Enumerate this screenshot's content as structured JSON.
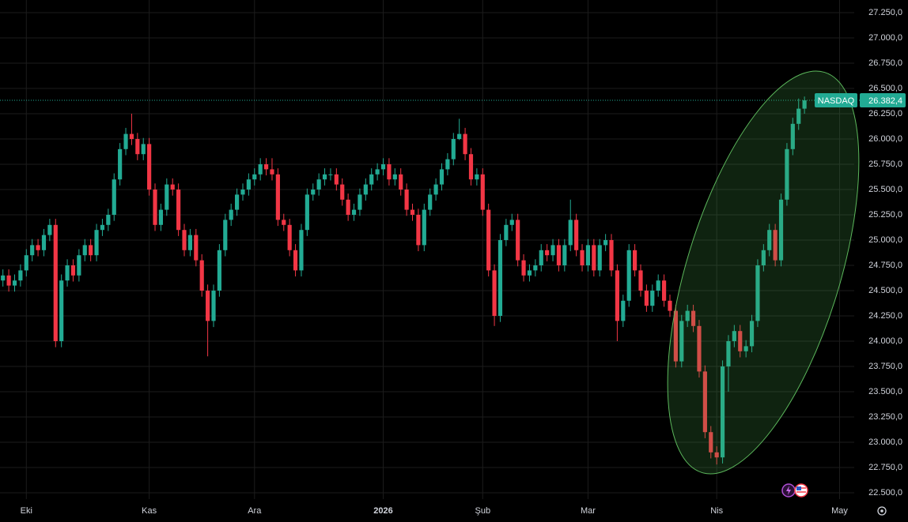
{
  "chart_data": {
    "type": "candlestick",
    "symbol": "NASDAQ",
    "last_price": {
      "value": 26382.4,
      "label": "26.382,4"
    },
    "up_color": "#22ab94",
    "down_color": "#f23645",
    "grid": true,
    "xlim": [
      -0.5,
      145.5
    ],
    "xticks": [
      {
        "value": 4,
        "label": "Eki"
      },
      {
        "value": 25,
        "label": "Kas"
      },
      {
        "value": 43,
        "label": "Ara"
      },
      {
        "value": 65,
        "label": "2026"
      },
      {
        "value": 82,
        "label": "Şub"
      },
      {
        "value": 100,
        "label": "Mar"
      },
      {
        "value": 122,
        "label": "Nis"
      },
      {
        "value": 143,
        "label": "May"
      }
    ],
    "ylim": [
      22437.5,
      27375
    ],
    "yticks": [
      {
        "value": 22500,
        "label": "22.500,0"
      },
      {
        "value": 22750,
        "label": "22.750,0"
      },
      {
        "value": 23000,
        "label": "23.000,0"
      },
      {
        "value": 23250,
        "label": "23.250,0"
      },
      {
        "value": 23500,
        "label": "23.500,0"
      },
      {
        "value": 23750,
        "label": "23.750,0"
      },
      {
        "value": 24000,
        "label": "24.000,0"
      },
      {
        "value": 24250,
        "label": "24.250,0"
      },
      {
        "value": 24500,
        "label": "24.500,0"
      },
      {
        "value": 24750,
        "label": "24.750,0"
      },
      {
        "value": 25000,
        "label": "25.000,0"
      },
      {
        "value": 25250,
        "label": "25.250,0"
      },
      {
        "value": 25500,
        "label": "25.500,0"
      },
      {
        "value": 25750,
        "label": "25.750,0"
      },
      {
        "value": 26000,
        "label": "26.000,0"
      },
      {
        "value": 26250,
        "label": "26.250,0"
      },
      {
        "value": 26500,
        "label": "26.500,0"
      },
      {
        "value": 26750,
        "label": "26.750,0"
      },
      {
        "value": 27000,
        "label": "27.000,0"
      },
      {
        "value": 27250,
        "label": "27.250,0"
      }
    ],
    "open": [
      24600,
      24650,
      24550,
      24600,
      24700,
      24850,
      24950,
      24900,
      25050,
      25150,
      24000,
      24600,
      24750,
      24650,
      24850,
      24950,
      24850,
      25100,
      25150,
      25250,
      25600,
      25900,
      26050,
      26000,
      25850,
      25950,
      25500,
      25150,
      25300,
      25550,
      25500,
      25100,
      24900,
      25050,
      24800,
      24500,
      24200,
      24500,
      24900,
      25200,
      25300,
      25450,
      25500,
      25600,
      25650,
      25750,
      25700,
      25650,
      25200,
      25150,
      24900,
      24700,
      25100,
      25450,
      25500,
      25600,
      25650,
      25650,
      25550,
      25400,
      25250,
      25300,
      25450,
      25550,
      25650,
      25700,
      25750,
      25600,
      25650,
      25500,
      25300,
      25250,
      24950,
      25300,
      25450,
      25550,
      25700,
      25800,
      26000,
      26050,
      25850,
      25600,
      25650,
      25300,
      24700,
      24250,
      25000,
      25150,
      25200,
      24800,
      24650,
      24700,
      24750,
      24900,
      24850,
      24950,
      24750,
      24950,
      25200,
      24900,
      24750,
      24950,
      24700,
      24950,
      25000,
      24700,
      24200,
      24400,
      24900,
      24700,
      24500,
      24350,
      24500,
      24600,
      24400,
      24300,
      23800,
      24200,
      24300,
      24150,
      23700,
      23100,
      22900,
      22850,
      23750,
      24000,
      24100,
      23900,
      23950,
      24200,
      24750,
      24900,
      25100,
      24800,
      25400,
      25900,
      26150,
      26300
    ],
    "high": [
      24710,
      24710,
      24660,
      24760,
      24910,
      25010,
      25010,
      25110,
      25210,
      25210,
      24660,
      24810,
      24810,
      24910,
      25010,
      25010,
      25160,
      25210,
      25310,
      25660,
      25960,
      26110,
      26250,
      26060,
      26010,
      26010,
      25560,
      25360,
      25610,
      25610,
      25560,
      25160,
      25110,
      25110,
      24860,
      24560,
      24560,
      24960,
      25260,
      25360,
      25510,
      25560,
      25660,
      25710,
      25810,
      25810,
      25810,
      25710,
      25260,
      25210,
      24960,
      25160,
      25510,
      25560,
      25660,
      25710,
      25710,
      25710,
      25610,
      25460,
      25360,
      25510,
      25610,
      25710,
      25760,
      25810,
      25810,
      25710,
      25710,
      25560,
      25360,
      25310,
      25360,
      25510,
      25610,
      25760,
      25860,
      26060,
      26200,
      26110,
      25910,
      25710,
      25710,
      25360,
      24760,
      25060,
      25210,
      25260,
      25260,
      24860,
      24760,
      24810,
      24960,
      24960,
      25010,
      25010,
      25010,
      25400,
      25260,
      24960,
      25010,
      25010,
      25010,
      25060,
      25060,
      24760,
      24460,
      24960,
      24960,
      24760,
      24560,
      24560,
      24660,
      24660,
      24460,
      24360,
      24260,
      24360,
      24360,
      24210,
      23760,
      23160,
      22960,
      23810,
      24060,
      24160,
      24160,
      24010,
      24260,
      24810,
      24960,
      25160,
      25160,
      25460,
      25960,
      26210,
      26400,
      26420
    ],
    "low": [
      24540,
      24490,
      24490,
      24540,
      24640,
      24790,
      24840,
      24840,
      24990,
      23940,
      23940,
      24540,
      24590,
      24590,
      24790,
      24790,
      24790,
      25040,
      25090,
      25190,
      25540,
      25840,
      25940,
      25790,
      25790,
      25440,
      25090,
      25090,
      25240,
      25440,
      25040,
      24840,
      24840,
      24740,
      24440,
      23850,
      24140,
      24440,
      24840,
      25140,
      25240,
      25390,
      25440,
      25540,
      25590,
      25640,
      25590,
      25140,
      25090,
      24840,
      24640,
      24640,
      25040,
      25390,
      25440,
      25540,
      25590,
      25490,
      25340,
      25190,
      25190,
      25240,
      25390,
      25490,
      25590,
      25640,
      25540,
      25540,
      25440,
      25240,
      25190,
      24890,
      24890,
      25240,
      25390,
      25490,
      25640,
      25740,
      25990,
      25790,
      25540,
      25540,
      25240,
      24640,
      24150,
      24190,
      24940,
      25090,
      24740,
      24590,
      24590,
      24640,
      24690,
      24790,
      24790,
      24690,
      24690,
      24890,
      24840,
      24690,
      24690,
      24640,
      24640,
      24890,
      24640,
      24000,
      24140,
      24340,
      24640,
      24440,
      24290,
      24290,
      24440,
      24340,
      24240,
      23740,
      23740,
      24140,
      24090,
      23640,
      23040,
      22840,
      22780,
      22790,
      23500,
      23940,
      23840,
      23840,
      23890,
      24140,
      24690,
      24840,
      24740,
      24740,
      25340,
      25840,
      26090,
      26250
    ],
    "close": [
      24650,
      24550,
      24600,
      24700,
      24850,
      24950,
      24900,
      25050,
      25150,
      24000,
      24600,
      24750,
      24650,
      24850,
      24950,
      24850,
      25100,
      25150,
      25250,
      25600,
      25900,
      26050,
      26000,
      25850,
      25950,
      25500,
      25150,
      25300,
      25550,
      25500,
      25100,
      24900,
      25050,
      24800,
      24500,
      24200,
      24500,
      24900,
      25200,
      25300,
      25450,
      25500,
      25600,
      25650,
      25750,
      25700,
      25650,
      25200,
      25150,
      24900,
      24700,
      25100,
      25450,
      25500,
      25600,
      25650,
      25650,
      25550,
      25400,
      25250,
      25300,
      25450,
      25550,
      25650,
      25700,
      25750,
      25600,
      25650,
      25500,
      25300,
      25250,
      24950,
      25300,
      25450,
      25550,
      25700,
      25800,
      26000,
      26050,
      25850,
      25600,
      25650,
      25300,
      24700,
      24250,
      25000,
      25150,
      25200,
      24800,
      24650,
      24700,
      24750,
      24900,
      24850,
      24950,
      24750,
      24950,
      25200,
      24900,
      24750,
      24950,
      24700,
      24950,
      25000,
      24700,
      24200,
      24400,
      24900,
      24700,
      24500,
      24350,
      24500,
      24600,
      24400,
      24300,
      23800,
      24200,
      24300,
      24150,
      23700,
      23100,
      22900,
      22850,
      23750,
      24000,
      24100,
      23900,
      23950,
      24200,
      24750,
      24900,
      25100,
      24800,
      25400,
      25900,
      26150,
      26300,
      26382.4
    ]
  }
}
